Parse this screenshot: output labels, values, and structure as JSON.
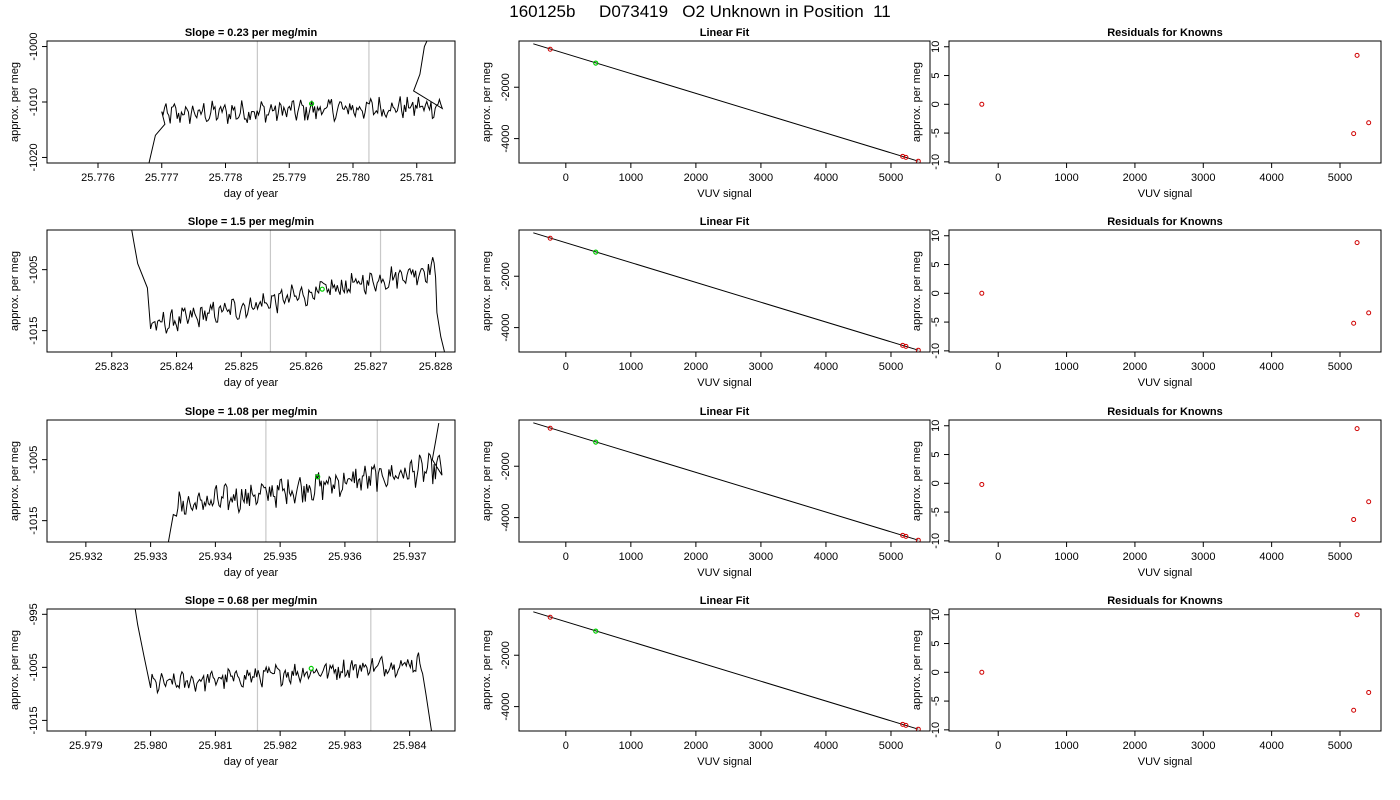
{
  "page_title": "160125b     D073419   O2 Unknown in Position  11",
  "colors": {
    "line": "#000000",
    "known_point": "#d00000",
    "unknown_point": "#00cc00",
    "window_line": "#c8c8c8"
  },
  "chart_data": [
    {
      "type": "line",
      "title": "Slope =  0.23  per meg/min",
      "xlabel": "day of year",
      "ylabel": "approx. per meg",
      "xlim": [
        25.7752,
        25.7816
      ],
      "ylim": [
        -1021,
        -999
      ],
      "xticks": [
        "25.776",
        "25.777",
        "25.778",
        "25.779",
        "25.780",
        "25.781"
      ],
      "yticks": [
        "-1020",
        "-1010",
        "-1000"
      ],
      "window": [
        25.7785,
        25.78025
      ],
      "marker": {
        "x": 25.77935,
        "y": -1010.3
      },
      "trace": {
        "x_start": 25.777,
        "x_end": 25.7814,
        "level": -1011.5,
        "slope": 0.23,
        "noise": 1.6,
        "pre": [
          [
            25.7767,
            -1025
          ],
          [
            25.7768,
            -1021
          ],
          [
            25.7769,
            -1016
          ],
          [
            25.77705,
            -1014
          ]
        ],
        "post": [
          [
            25.78095,
            -1008
          ],
          [
            25.78105,
            -1005
          ],
          [
            25.78112,
            -1000
          ],
          [
            25.7812,
            -998
          ]
        ]
      }
    },
    {
      "type": "line",
      "title": "Linear Fit",
      "xlabel": "VUV signal",
      "ylabel": "approx. per meg",
      "xlim": [
        -720,
        5600
      ],
      "ylim": [
        -4950,
        -200
      ],
      "xticks": [
        "0",
        "1000",
        "2000",
        "3000",
        "4000",
        "5000"
      ],
      "yticks": [
        "-2000",
        "-4000"
      ],
      "fit_line": [
        [
          -500,
          -310
        ],
        [
          5420,
          -4880
        ]
      ],
      "knowns": [
        [
          -240,
          -520
        ],
        [
          5180,
          -4690
        ],
        [
          5230,
          -4730
        ],
        [
          5420,
          -4880
        ]
      ],
      "unknown": [
        [
          460,
          -1060
        ]
      ]
    },
    {
      "type": "scatter",
      "title": "Residuals for Knowns",
      "xlabel": "VUV signal",
      "ylabel": "approx. per meg",
      "xlim": [
        -720,
        5600
      ],
      "ylim": [
        -10.2,
        11
      ],
      "xticks": [
        "0",
        "1000",
        "2000",
        "3000",
        "4000",
        "5000"
      ],
      "yticks": [
        "-10",
        "-5",
        "0",
        "5",
        "10"
      ],
      "points": [
        [
          -240,
          0
        ],
        [
          5200,
          -5.1
        ],
        [
          5250,
          8.5
        ],
        [
          5420,
          -3.2
        ]
      ]
    },
    {
      "type": "line",
      "title": "Slope =  1.5  per meg/min",
      "xlabel": "day of year",
      "ylabel": "approx. per meg",
      "xlim": [
        25.822,
        25.8283
      ],
      "ylim": [
        -1018.5,
        -998.5
      ],
      "xticks": [
        "25.823",
        "25.824",
        "25.825",
        "25.826",
        "25.827",
        "25.828"
      ],
      "yticks": [
        "-1015",
        "-1005"
      ],
      "window": [
        25.82545,
        25.82715
      ],
      "marker": {
        "x": 25.82625,
        "y": -1008.2
      },
      "trace": {
        "x_start": 25.8236,
        "x_end": 25.828,
        "level": -1009.5,
        "slope": 1.5,
        "noise": 1.5,
        "pre": [
          [
            25.8233,
            -998
          ],
          [
            25.82335,
            -1001
          ],
          [
            25.8234,
            -1004
          ],
          [
            25.82355,
            -1008
          ]
        ],
        "post": [
          [
            25.82802,
            -1012
          ],
          [
            25.82808,
            -1016
          ],
          [
            25.82815,
            -1019
          ]
        ]
      }
    },
    {
      "type": "line",
      "title": "Linear Fit",
      "xlabel": "VUV signal",
      "ylabel": "approx. per meg",
      "xlim": [
        -720,
        5600
      ],
      "ylim": [
        -4950,
        -200
      ],
      "xticks": [
        "0",
        "1000",
        "2000",
        "3000",
        "4000",
        "5000"
      ],
      "yticks": [
        "-2000",
        "-4000"
      ],
      "fit_line": [
        [
          -500,
          -310
        ],
        [
          5420,
          -4880
        ]
      ],
      "knowns": [
        [
          -240,
          -520
        ],
        [
          5180,
          -4690
        ],
        [
          5230,
          -4730
        ],
        [
          5420,
          -4880
        ]
      ],
      "unknown": [
        [
          460,
          -1060
        ]
      ]
    },
    {
      "type": "scatter",
      "title": "Residuals for Knowns",
      "xlabel": "VUV signal",
      "ylabel": "approx. per meg",
      "xlim": [
        -720,
        5600
      ],
      "ylim": [
        -10.2,
        11
      ],
      "xticks": [
        "0",
        "1000",
        "2000",
        "3000",
        "4000",
        "5000"
      ],
      "yticks": [
        "-10",
        "-5",
        "0",
        "5",
        "10"
      ],
      "points": [
        [
          -240,
          0
        ],
        [
          5200,
          -5.2
        ],
        [
          5250,
          8.8
        ],
        [
          5420,
          -3.4
        ]
      ]
    },
    {
      "type": "line",
      "title": "Slope =  1.08  per meg/min",
      "xlabel": "day of year",
      "ylabel": "approx. per meg",
      "xlim": [
        25.9314,
        25.9377
      ],
      "ylim": [
        -1018.5,
        -998.5
      ],
      "xticks": [
        "25.932",
        "25.933",
        "25.934",
        "25.935",
        "25.936",
        "25.937"
      ],
      "yticks": [
        "-1015",
        "-1005"
      ],
      "window": [
        25.93478,
        25.9365
      ],
      "marker": {
        "x": 25.93558,
        "y": -1007.8
      },
      "trace": {
        "x_start": 25.9334,
        "x_end": 25.9375,
        "level": -1009.5,
        "slope": 1.08,
        "noise": 1.8,
        "pre": [
          [
            25.93325,
            -1020
          ],
          [
            25.9333,
            -1017
          ],
          [
            25.93335,
            -1014
          ]
        ],
        "post": [
          [
            25.93735,
            -1005
          ],
          [
            25.9374,
            -1002
          ],
          [
            25.93745,
            -999
          ]
        ]
      }
    },
    {
      "type": "line",
      "title": "Linear Fit",
      "xlabel": "VUV signal",
      "ylabel": "approx. per meg",
      "xlim": [
        -720,
        5600
      ],
      "ylim": [
        -4950,
        -200
      ],
      "xticks": [
        "0",
        "1000",
        "2000",
        "3000",
        "4000",
        "5000"
      ],
      "yticks": [
        "-2000",
        "-4000"
      ],
      "fit_line": [
        [
          -500,
          -310
        ],
        [
          5420,
          -4880
        ]
      ],
      "knowns": [
        [
          -240,
          -520
        ],
        [
          5180,
          -4690
        ],
        [
          5230,
          -4730
        ],
        [
          5420,
          -4880
        ]
      ],
      "unknown": [
        [
          460,
          -1060
        ]
      ]
    },
    {
      "type": "scatter",
      "title": "Residuals for Knowns",
      "xlabel": "VUV signal",
      "ylabel": "approx. per meg",
      "xlim": [
        -720,
        5600
      ],
      "ylim": [
        -10.2,
        11
      ],
      "xticks": [
        "0",
        "1000",
        "2000",
        "3000",
        "4000",
        "5000"
      ],
      "yticks": [
        "-10",
        "-5",
        "0",
        "5",
        "10"
      ],
      "points": [
        [
          -240,
          -0.2
        ],
        [
          5200,
          -6.3
        ],
        [
          5250,
          9.5
        ],
        [
          5420,
          -3.2
        ]
      ]
    },
    {
      "type": "line",
      "title": "Slope =  0.68  per meg/min",
      "xlabel": "day of year",
      "ylabel": "approx. per meg",
      "xlim": [
        25.9784,
        25.9847
      ],
      "ylim": [
        -1017,
        -994
      ],
      "xticks": [
        "25.979",
        "25.980",
        "25.981",
        "25.982",
        "25.983",
        "25.984"
      ],
      "yticks": [
        "-1015",
        "-1005",
        "-995"
      ],
      "window": [
        25.98165,
        25.9834
      ],
      "marker": {
        "x": 25.98248,
        "y": -1005.2
      },
      "trace": {
        "x_start": 25.98,
        "x_end": 25.9842,
        "level": -1006.2,
        "slope": 0.68,
        "noise": 1.5,
        "pre": [
          [
            25.97975,
            -993
          ],
          [
            25.9798,
            -997
          ],
          [
            25.97985,
            -1000
          ],
          [
            25.9799,
            -1003
          ]
        ],
        "post": [
          [
            25.98425,
            -1010
          ],
          [
            25.9843,
            -1014
          ],
          [
            25.98435,
            -1018
          ]
        ]
      }
    },
    {
      "type": "line",
      "title": "Linear Fit",
      "xlabel": "VUV signal",
      "ylabel": "approx. per meg",
      "xlim": [
        -720,
        5600
      ],
      "ylim": [
        -4950,
        -200
      ],
      "xticks": [
        "0",
        "1000",
        "2000",
        "3000",
        "4000",
        "5000"
      ],
      "yticks": [
        "-2000",
        "-4000"
      ],
      "fit_line": [
        [
          -500,
          -310
        ],
        [
          5420,
          -4880
        ]
      ],
      "knowns": [
        [
          -240,
          -520
        ],
        [
          5180,
          -4690
        ],
        [
          5230,
          -4730
        ],
        [
          5420,
          -4880
        ]
      ],
      "unknown": [
        [
          460,
          -1060
        ]
      ]
    },
    {
      "type": "scatter",
      "title": "Residuals for Knowns",
      "xlabel": "VUV signal",
      "ylabel": "approx. per meg",
      "xlim": [
        -720,
        5600
      ],
      "ylim": [
        -10.2,
        11
      ],
      "xticks": [
        "0",
        "1000",
        "2000",
        "3000",
        "4000",
        "5000"
      ],
      "yticks": [
        "-10",
        "-5",
        "0",
        "5",
        "10"
      ],
      "points": [
        [
          -240,
          0
        ],
        [
          5200,
          -6.6
        ],
        [
          5250,
          10.0
        ],
        [
          5420,
          -3.5
        ]
      ]
    }
  ]
}
